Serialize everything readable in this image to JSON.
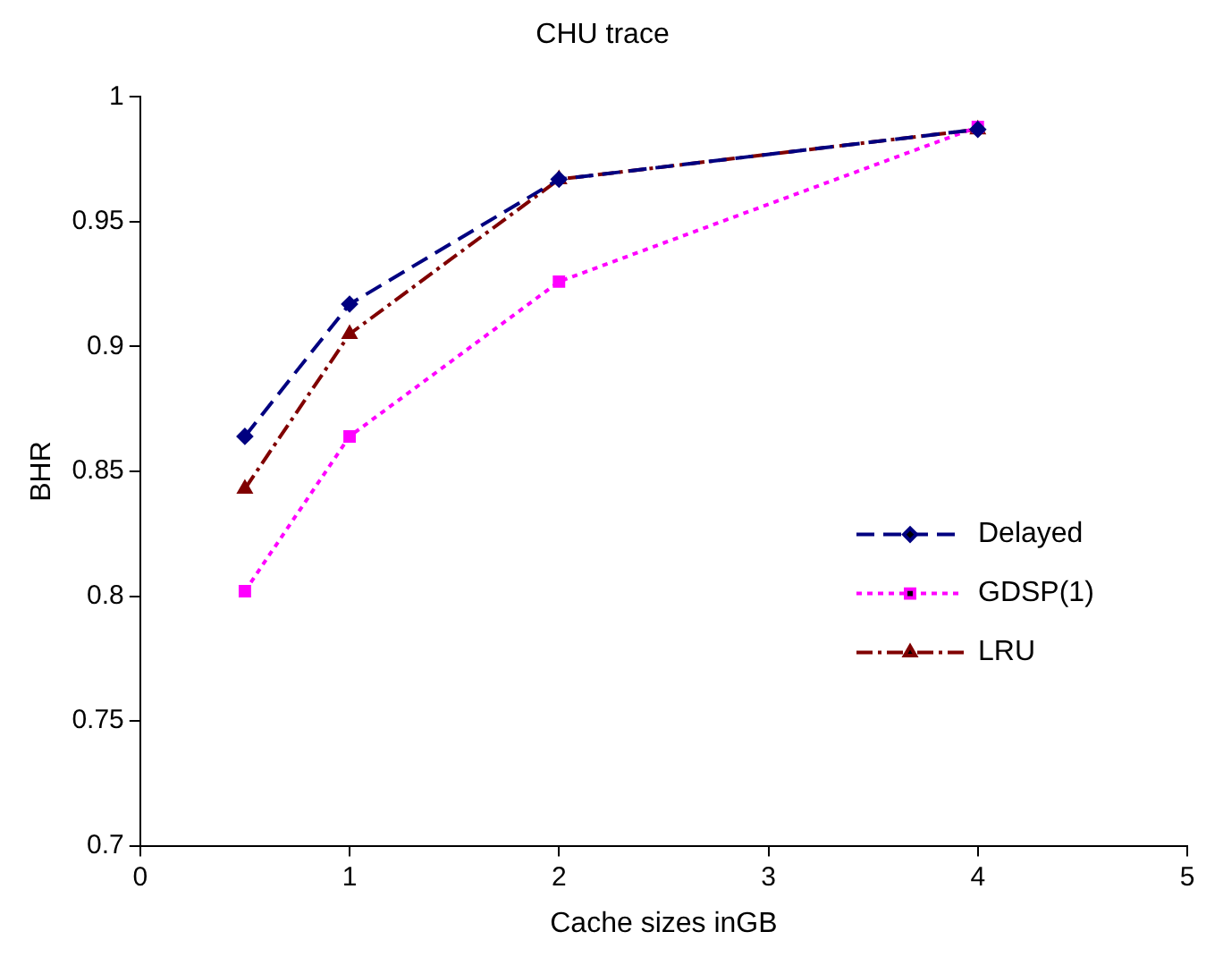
{
  "chart_data": {
    "type": "line",
    "title": "CHU trace",
    "xlabel": "Cache sizes inGB",
    "ylabel": "BHR",
    "x": [
      0.5,
      1,
      2,
      4
    ],
    "series": [
      {
        "name": "Delayed",
        "color": "#000080",
        "values": [
          0.864,
          0.917,
          0.967,
          0.987
        ],
        "marker": "diamond",
        "line_style": "dashed"
      },
      {
        "name": "GDSP(1)",
        "color": "#ff00ff",
        "values": [
          0.802,
          0.864,
          0.926,
          0.988
        ],
        "marker": "square",
        "line_style": "dotted"
      },
      {
        "name": "LRU",
        "color": "#800000",
        "values": [
          0.843,
          0.905,
          0.967,
          0.987
        ],
        "marker": "triangle",
        "line_style": "dashdot"
      }
    ],
    "xlim": [
      0,
      5
    ],
    "xticks": [
      0,
      1,
      2,
      3,
      4,
      5
    ],
    "ylim": [
      0.7,
      1
    ],
    "yticks": [
      0.7,
      0.75,
      0.8,
      0.85,
      0.9,
      0.95,
      1
    ],
    "grid": false,
    "legend": "bottom right"
  }
}
